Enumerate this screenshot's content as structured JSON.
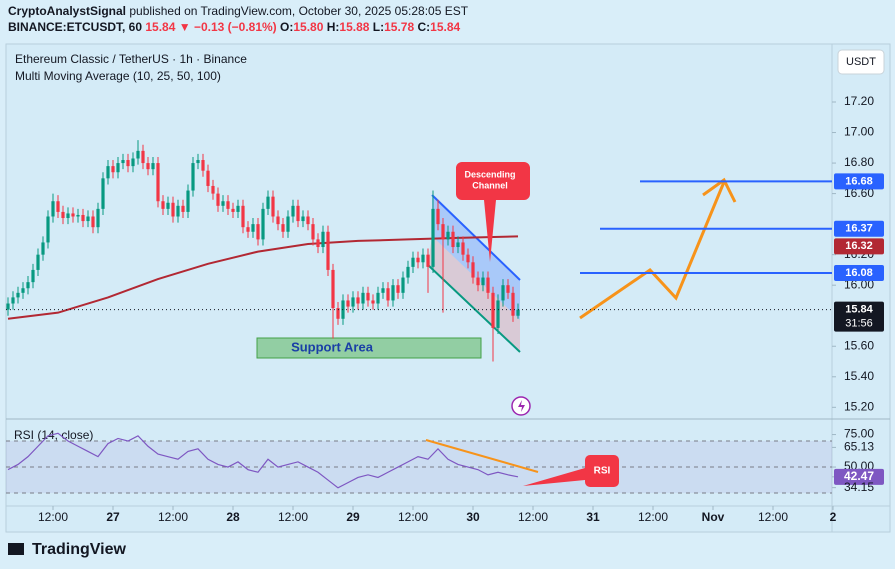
{
  "header": {
    "author": "CryptoAnalystSignal",
    "published": "published on TradingView.com, October 30, 2025 05:28:05 EST",
    "symbol": "BINANCE:ETCUSDT, 60",
    "last": "15.84",
    "change": "▼ −0.13 (−0.81%)",
    "ohlc": [
      {
        "k": "O:",
        "v": "15.80"
      },
      {
        "k": "H:",
        "v": "15.88"
      },
      {
        "k": "L:",
        "v": "15.78"
      },
      {
        "k": "C:",
        "v": "15.84"
      }
    ]
  },
  "footer": {
    "brand": "TradingView"
  },
  "chart_data": [
    {
      "type": "candlestick",
      "title": "Ethereum Classic / TetherUS · 1h · Binance",
      "subtitle": "Multi Moving Average (10, 25, 50, 100)",
      "currency": "USDT",
      "up_color": "#089981",
      "down_color": "#f23645",
      "x": [
        0,
        1,
        2,
        3,
        4,
        5,
        6,
        7,
        8,
        9,
        10,
        11,
        12,
        13,
        14,
        15,
        16,
        17,
        18,
        19,
        20,
        21,
        22,
        23,
        24,
        25,
        26,
        27,
        28,
        29,
        30,
        31,
        32,
        33,
        34,
        35,
        36,
        37,
        38,
        39,
        40,
        41,
        42,
        43,
        44,
        45,
        46,
        47,
        48,
        49,
        50,
        51,
        52,
        53,
        54,
        55,
        56,
        57,
        58,
        59,
        60,
        61,
        62,
        63,
        64,
        65,
        66,
        67,
        68,
        69,
        70,
        71,
        72,
        73,
        74,
        75,
        76,
        77,
        78,
        79,
        80,
        81,
        82,
        83,
        84,
        85,
        86,
        87,
        88,
        89,
        90,
        91,
        92,
        93,
        94,
        95,
        96,
        97,
        98,
        99,
        100,
        101,
        102
      ],
      "open": [
        15.84,
        15.88,
        15.92,
        15.95,
        15.98,
        16.02,
        16.1,
        16.2,
        16.28,
        16.45,
        16.55,
        16.48,
        16.44,
        16.47,
        16.45,
        16.46,
        16.42,
        16.45,
        16.38,
        16.5,
        16.7,
        16.78,
        16.74,
        16.8,
        16.82,
        16.78,
        16.83,
        16.88,
        16.8,
        16.76,
        16.8,
        16.55,
        16.5,
        16.54,
        16.45,
        16.52,
        16.48,
        16.62,
        16.8,
        16.82,
        16.75,
        16.65,
        16.6,
        16.52,
        16.55,
        16.5,
        16.48,
        16.52,
        16.38,
        16.35,
        16.4,
        16.3,
        16.5,
        16.58,
        16.45,
        16.4,
        16.35,
        16.45,
        16.52,
        16.42,
        16.45,
        16.4,
        16.3,
        16.25,
        16.35,
        16.1,
        15.85,
        15.78,
        15.9,
        15.86,
        15.92,
        15.88,
        15.95,
        15.9,
        15.88,
        15.95,
        15.98,
        15.9,
        16.0,
        15.95,
        16.05,
        16.12,
        16.18,
        16.15,
        16.2,
        16.12,
        16.5,
        16.4,
        16.3,
        16.35,
        16.25,
        16.28,
        16.2,
        16.15,
        16.05,
        16.0,
        16.05,
        15.95,
        15.72,
        15.9,
        16.0,
        15.95,
        15.8
      ],
      "high": [
        15.92,
        15.96,
        15.99,
        16.02,
        16.06,
        16.14,
        16.24,
        16.32,
        16.49,
        16.6,
        16.59,
        16.52,
        16.51,
        16.51,
        16.5,
        16.5,
        16.49,
        16.49,
        16.54,
        16.74,
        16.82,
        16.82,
        16.84,
        16.86,
        16.86,
        16.87,
        16.95,
        16.92,
        16.84,
        16.84,
        16.84,
        16.59,
        16.58,
        16.58,
        16.56,
        16.56,
        16.66,
        16.84,
        16.86,
        16.86,
        16.79,
        16.69,
        16.64,
        16.59,
        16.59,
        16.54,
        16.56,
        16.56,
        16.42,
        16.44,
        16.44,
        16.54,
        16.62,
        16.62,
        16.49,
        16.44,
        16.49,
        16.56,
        16.56,
        16.49,
        16.49,
        16.44,
        16.34,
        16.39,
        16.39,
        16.14,
        15.89,
        15.94,
        15.94,
        15.96,
        15.96,
        15.99,
        15.99,
        15.94,
        15.99,
        16.02,
        16.02,
        16.04,
        16.04,
        16.09,
        16.16,
        16.22,
        16.22,
        16.24,
        16.24,
        16.62,
        16.56,
        16.44,
        16.39,
        16.39,
        16.32,
        16.32,
        16.24,
        16.19,
        16.09,
        16.09,
        16.09,
        15.99,
        15.94,
        16.04,
        16.04,
        15.99,
        15.88
      ],
      "low": [
        15.8,
        15.84,
        15.88,
        15.91,
        15.94,
        15.98,
        16.06,
        16.16,
        16.24,
        16.41,
        16.44,
        16.4,
        16.4,
        16.41,
        16.41,
        16.38,
        16.38,
        16.34,
        16.34,
        16.46,
        16.66,
        16.7,
        16.7,
        16.76,
        16.74,
        16.74,
        16.79,
        16.76,
        16.72,
        16.72,
        16.51,
        16.46,
        16.46,
        16.41,
        16.41,
        16.44,
        16.44,
        16.58,
        16.76,
        16.71,
        16.61,
        16.56,
        16.48,
        16.48,
        16.46,
        16.44,
        16.44,
        16.34,
        16.31,
        16.31,
        16.26,
        16.26,
        16.46,
        16.41,
        16.36,
        16.31,
        16.31,
        16.41,
        16.38,
        16.38,
        16.36,
        16.26,
        16.21,
        16.21,
        16.06,
        15.65,
        15.74,
        15.74,
        15.82,
        15.82,
        15.84,
        15.84,
        15.86,
        15.84,
        15.84,
        15.91,
        15.86,
        15.86,
        15.91,
        15.91,
        16.01,
        16.08,
        16.11,
        16.11,
        15.95,
        16.08,
        16.36,
        15.82,
        16.26,
        16.21,
        16.21,
        16.16,
        16.11,
        16.01,
        15.96,
        15.96,
        15.91,
        15.5,
        15.68,
        15.86,
        15.91,
        15.76,
        15.78
      ],
      "close": [
        15.88,
        15.92,
        15.95,
        15.98,
        16.02,
        16.1,
        16.2,
        16.28,
        16.45,
        16.55,
        16.48,
        16.44,
        16.47,
        16.45,
        16.46,
        16.42,
        16.45,
        16.38,
        16.5,
        16.7,
        16.78,
        16.74,
        16.8,
        16.82,
        16.78,
        16.83,
        16.88,
        16.8,
        16.76,
        16.8,
        16.55,
        16.5,
        16.54,
        16.45,
        16.52,
        16.48,
        16.62,
        16.8,
        16.82,
        16.75,
        16.65,
        16.6,
        16.52,
        16.55,
        16.5,
        16.48,
        16.52,
        16.38,
        16.35,
        16.4,
        16.3,
        16.5,
        16.58,
        16.45,
        16.4,
        16.35,
        16.45,
        16.52,
        16.42,
        16.45,
        16.4,
        16.3,
        16.25,
        16.35,
        16.1,
        15.85,
        15.78,
        15.9,
        15.86,
        15.92,
        15.88,
        15.95,
        15.9,
        15.88,
        15.95,
        15.98,
        15.9,
        16.0,
        15.95,
        16.05,
        16.12,
        16.18,
        16.15,
        16.2,
        16.12,
        16.5,
        16.4,
        16.3,
        16.35,
        16.25,
        16.28,
        16.2,
        16.15,
        16.05,
        16.0,
        16.05,
        15.95,
        15.72,
        15.9,
        16.0,
        15.95,
        15.8,
        15.84
      ],
      "moving_average": {
        "color": "#b22833",
        "x": [
          0,
          10,
          20,
          30,
          40,
          50,
          60,
          70,
          80,
          90,
          102
        ],
        "values": [
          15.78,
          15.82,
          15.92,
          16.04,
          16.14,
          16.22,
          16.27,
          16.29,
          16.3,
          16.31,
          16.32
        ]
      },
      "levels": [
        16.68,
        16.37,
        16.08
      ],
      "level_color": "#2962ff",
      "countdown": "31:56",
      "support_label": "Support Area",
      "channel_label": [
        "Descending",
        "Channel"
      ],
      "xlim": [
        -0.4,
        164.8
      ],
      "ylim": [
        15.13,
        17.58
      ],
      "xticks": [
        {
          "value": 9,
          "label": "12:00"
        },
        {
          "value": 21,
          "label": "27"
        },
        {
          "value": 33,
          "label": "12:00"
        },
        {
          "value": 45,
          "label": "28"
        },
        {
          "value": 57,
          "label": "12:00"
        },
        {
          "value": 69,
          "label": "29"
        },
        {
          "value": 81,
          "label": "12:00"
        },
        {
          "value": 93,
          "label": "30"
        },
        {
          "value": 105,
          "label": "12:00"
        },
        {
          "value": 117,
          "label": "31"
        },
        {
          "value": 129,
          "label": "12:00"
        },
        {
          "value": 141,
          "label": "Nov"
        },
        {
          "value": 153,
          "label": "12:00"
        },
        {
          "value": 165,
          "label": "2"
        }
      ],
      "yticks": [
        {
          "value": 17.2,
          "label": "17.20"
        },
        {
          "value": 17.0,
          "label": "17.00"
        },
        {
          "value": 16.8,
          "label": "16.80"
        },
        {
          "value": 16.6,
          "label": "16.60"
        },
        {
          "value": 16.2,
          "label": "16.20"
        },
        {
          "value": 16.0,
          "label": "16.00"
        },
        {
          "value": 15.6,
          "label": "15.60"
        },
        {
          "value": 15.4,
          "label": "15.40"
        },
        {
          "value": 15.2,
          "label": "15.20"
        }
      ]
    },
    {
      "type": "line",
      "title": "RSI (14, close)",
      "callout": "RSI",
      "color": "#7e57c2",
      "x": [
        0,
        2,
        4,
        6,
        8,
        10,
        12,
        14,
        16,
        18,
        20,
        22,
        24,
        26,
        28,
        30,
        32,
        34,
        36,
        38,
        40,
        42,
        44,
        46,
        48,
        50,
        52,
        54,
        56,
        58,
        60,
        62,
        64,
        66,
        68,
        70,
        72,
        74,
        76,
        78,
        80,
        82,
        84,
        86,
        88,
        90,
        92,
        94,
        96,
        98,
        100,
        102
      ],
      "values": [
        48,
        52,
        58,
        66,
        74,
        76,
        70,
        66,
        62,
        58,
        68,
        72,
        70,
        74,
        66,
        60,
        58,
        56,
        62,
        64,
        56,
        52,
        50,
        54,
        48,
        46,
        56,
        50,
        52,
        54,
        50,
        46,
        40,
        34,
        38,
        42,
        44,
        42,
        46,
        50,
        54,
        58,
        56,
        64,
        56,
        52,
        50,
        48,
        44,
        46,
        44,
        42.47
      ],
      "bands": [
        70,
        50,
        30
      ],
      "xlim": [
        -0.4,
        164.8
      ],
      "ylim": [
        20.8,
        86.2
      ],
      "yticks": [
        {
          "value": 75,
          "label": "75.00"
        },
        {
          "value": 65.13,
          "label": "65.13"
        },
        {
          "value": 50,
          "label": "50.00"
        },
        {
          "value": 42.47,
          "label": "42.47"
        },
        {
          "value": 34.15,
          "label": "34.15"
        }
      ]
    }
  ]
}
